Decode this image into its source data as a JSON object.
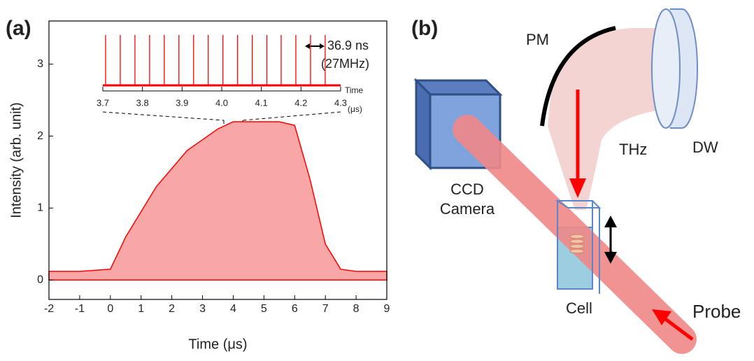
{
  "panel_labels": [
    "(a)",
    "(b)"
  ],
  "chart_data": [
    {
      "type": "line",
      "xlabel": "Time (μs)",
      "ylabel": "Intensity (arb. unit)",
      "color": "#ff0000",
      "x": [
        -2,
        -1,
        0,
        0.5,
        1,
        1.5,
        2,
        2.5,
        3,
        3.5,
        4,
        4.5,
        5,
        5.5,
        6,
        6.5,
        7,
        7.5,
        8,
        9
      ],
      "values": [
        0.12,
        0.12,
        0.15,
        0.6,
        0.95,
        1.3,
        1.55,
        1.8,
        1.95,
        2.1,
        2.2,
        2.2,
        2.2,
        2.2,
        2.15,
        1.4,
        0.5,
        0.15,
        0.12,
        0.12
      ],
      "xlim": [
        -2,
        9
      ],
      "xticks": [
        -2,
        -1,
        0,
        1,
        2,
        3,
        4,
        5,
        6,
        7,
        8,
        9
      ],
      "ylim": [
        -0.27,
        3.6
      ],
      "yticks": [
        0,
        1,
        2,
        3
      ]
    },
    {
      "type": "spike",
      "xlabel": "Time",
      "xunit": "(μs)",
      "color": "#ff0000",
      "annotations": [
        "36.9 ns",
        "(27MHz)"
      ],
      "x": [
        3.707,
        3.744,
        3.781,
        3.818,
        3.855,
        3.892,
        3.929,
        3.966,
        4.003,
        4.04,
        4.077,
        4.114,
        4.15,
        4.187,
        4.224,
        4.261
      ],
      "values": [
        1,
        1,
        1,
        1,
        1,
        1,
        1,
        1,
        1,
        1,
        1,
        1,
        1,
        1,
        1,
        1
      ],
      "xlim": [
        3.7,
        4.3
      ],
      "xticks": [
        3.7,
        3.8,
        3.9,
        4.0,
        4.1,
        4.2,
        4.3
      ],
      "ylim": [
        0,
        1
      ]
    }
  ],
  "diagram": {
    "camera": [
      "CCD",
      "Camera"
    ],
    "mirror": "PM",
    "beam": "THz",
    "window": "DW",
    "cell": "Cell",
    "probe": "Probe"
  }
}
